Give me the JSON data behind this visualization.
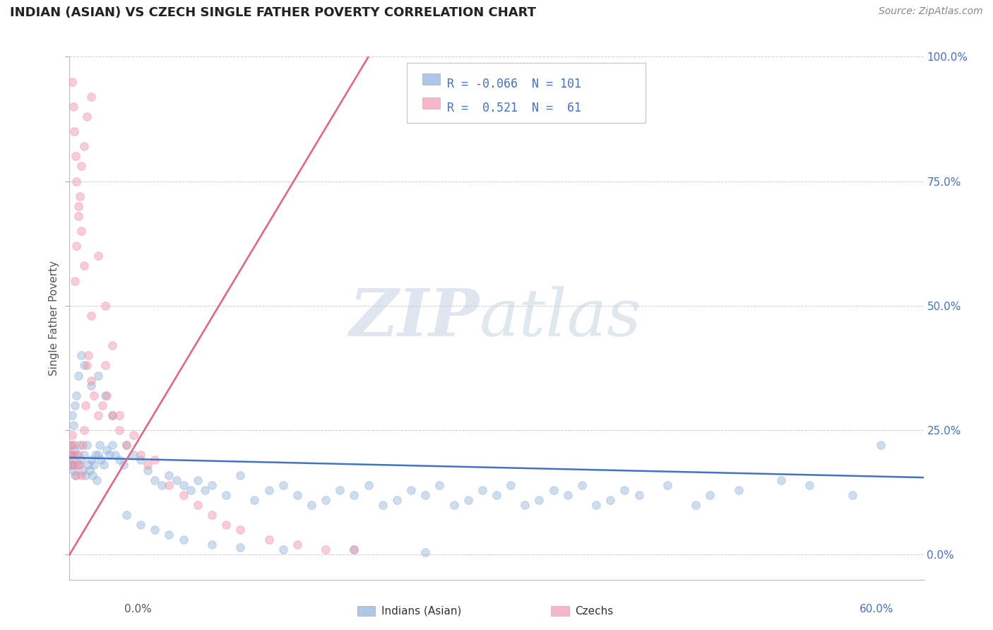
{
  "title": "INDIAN (ASIAN) VS CZECH SINGLE FATHER POVERTY CORRELATION CHART",
  "source_text": "Source: ZipAtlas.com",
  "ylabel": "Single Father Poverty",
  "watermark_zip": "ZIP",
  "watermark_atlas": "atlas",
  "legend_blue_label": "R = -0.066  N = 101",
  "legend_pink_label": "R =  0.521  N =  61",
  "legend_blue_color": "#aec6e8",
  "legend_pink_color": "#f5b8c8",
  "blue_scatter_x": [
    0.1,
    0.15,
    0.2,
    0.25,
    0.3,
    0.35,
    0.4,
    0.5,
    0.6,
    0.7,
    0.8,
    0.9,
    1.0,
    1.1,
    1.2,
    1.3,
    1.4,
    1.5,
    1.6,
    1.7,
    1.8,
    1.9,
    2.0,
    2.1,
    2.2,
    2.4,
    2.6,
    2.8,
    3.0,
    3.2,
    3.5,
    3.8,
    4.0,
    4.5,
    5.0,
    5.5,
    6.0,
    6.5,
    7.0,
    7.5,
    8.0,
    8.5,
    9.0,
    9.5,
    10.0,
    11.0,
    12.0,
    13.0,
    14.0,
    15.0,
    16.0,
    17.0,
    18.0,
    19.0,
    20.0,
    21.0,
    22.0,
    23.0,
    24.0,
    25.0,
    26.0,
    27.0,
    28.0,
    29.0,
    30.0,
    31.0,
    32.0,
    33.0,
    34.0,
    35.0,
    36.0,
    37.0,
    38.0,
    39.0,
    40.0,
    42.0,
    44.0,
    45.0,
    47.0,
    50.0,
    52.0,
    55.0,
    57.0,
    0.2,
    0.3,
    0.4,
    0.5,
    0.6,
    0.8,
    1.0,
    1.5,
    2.0,
    2.5,
    3.0,
    4.0,
    5.0,
    6.0,
    7.0,
    8.0,
    10.0,
    12.0,
    15.0,
    20.0,
    25.0,
    0.05
  ],
  "blue_scatter_y": [
    20.0,
    22.0,
    18.0,
    19.0,
    17.0,
    21.0,
    16.0,
    20.0,
    18.0,
    22.0,
    19.0,
    17.0,
    20.0,
    16.0,
    22.0,
    18.0,
    17.0,
    19.0,
    16.0,
    18.0,
    20.0,
    15.0,
    20.0,
    22.0,
    19.0,
    18.0,
    21.0,
    20.0,
    22.0,
    20.0,
    19.0,
    18.0,
    22.0,
    20.0,
    19.0,
    17.0,
    15.0,
    14.0,
    16.0,
    15.0,
    14.0,
    13.0,
    15.0,
    13.0,
    14.0,
    12.0,
    16.0,
    11.0,
    13.0,
    14.0,
    12.0,
    10.0,
    11.0,
    13.0,
    12.0,
    14.0,
    10.0,
    11.0,
    13.0,
    12.0,
    14.0,
    10.0,
    11.0,
    13.0,
    12.0,
    14.0,
    10.0,
    11.0,
    13.0,
    12.0,
    14.0,
    10.0,
    11.0,
    13.0,
    12.0,
    14.0,
    10.0,
    12.0,
    13.0,
    15.0,
    14.0,
    12.0,
    22.0,
    28.0,
    26.0,
    30.0,
    32.0,
    36.0,
    40.0,
    38.0,
    34.0,
    36.0,
    32.0,
    28.0,
    8.0,
    6.0,
    5.0,
    4.0,
    3.0,
    2.0,
    1.5,
    1.0,
    1.0,
    0.5,
    18.0
  ],
  "pink_scatter_x": [
    0.05,
    0.1,
    0.15,
    0.2,
    0.25,
    0.3,
    0.35,
    0.4,
    0.5,
    0.6,
    0.7,
    0.8,
    0.9,
    1.0,
    1.1,
    1.2,
    1.3,
    1.5,
    1.7,
    2.0,
    2.3,
    2.6,
    3.0,
    3.5,
    4.0,
    4.5,
    5.0,
    5.5,
    6.0,
    7.0,
    8.0,
    9.0,
    10.0,
    11.0,
    12.0,
    14.0,
    16.0,
    18.0,
    20.0,
    0.4,
    0.5,
    0.6,
    0.7,
    0.8,
    1.0,
    1.2,
    1.5,
    2.0,
    2.5,
    3.0,
    0.2,
    0.3,
    0.35,
    0.5,
    0.6,
    0.8,
    1.0,
    1.5,
    2.5,
    3.5,
    0.45
  ],
  "pink_scatter_y": [
    20.0,
    22.0,
    20.0,
    24.0,
    18.0,
    20.0,
    22.0,
    18.0,
    16.0,
    20.0,
    18.0,
    16.0,
    22.0,
    25.0,
    30.0,
    38.0,
    40.0,
    35.0,
    32.0,
    28.0,
    30.0,
    32.0,
    28.0,
    25.0,
    22.0,
    24.0,
    20.0,
    18.0,
    19.0,
    14.0,
    12.0,
    10.0,
    8.0,
    6.0,
    5.0,
    3.0,
    2.0,
    1.0,
    1.0,
    55.0,
    62.0,
    68.0,
    72.0,
    78.0,
    82.0,
    88.0,
    92.0,
    60.0,
    50.0,
    42.0,
    95.0,
    90.0,
    85.0,
    75.0,
    70.0,
    65.0,
    58.0,
    48.0,
    38.0,
    28.0,
    80.0
  ],
  "blue_line_x": [
    0.0,
    60.0
  ],
  "blue_line_y": [
    19.5,
    15.5
  ],
  "pink_line_x": [
    0.0,
    21.0
  ],
  "pink_line_y": [
    0.0,
    100.0
  ],
  "scatter_size": 70,
  "scatter_alpha": 0.45,
  "blue_color": "#92b4d9",
  "pink_color": "#f090a8",
  "blue_line_color": "#4472c4",
  "pink_line_color": "#e8607a",
  "grid_color": "#c8c8c8",
  "bg_color": "#ffffff",
  "xmin": 0.0,
  "xmax": 60.0,
  "ymin": -5.0,
  "ymax": 100.0,
  "ytick_vals": [
    0,
    25,
    50,
    75,
    100
  ],
  "ytick_labels": [
    "0.0%",
    "25.0%",
    "50.0%",
    "75.0%",
    "100.0%"
  ],
  "xtick_labels_bottom": [
    "0.0%",
    "60.0%"
  ]
}
